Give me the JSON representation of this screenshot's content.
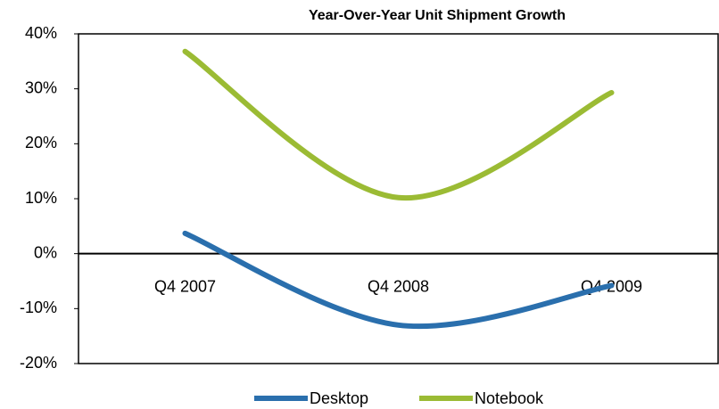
{
  "chart_data": {
    "type": "line",
    "title": "Year-Over-Year Unit Shipment Growth",
    "categories": [
      "Q4 2007",
      "Q4 2008",
      "Q4 2009"
    ],
    "series": [
      {
        "name": "Desktop",
        "color": "#2a6fad",
        "values": [
          3.7,
          -13,
          -5.8
        ]
      },
      {
        "name": "Notebook",
        "color": "#9bbb34",
        "values": [
          36.8,
          10.2,
          29.3
        ]
      }
    ],
    "ylim": [
      -20,
      40
    ],
    "yticks": [
      {
        "value": -20,
        "label": "-20%"
      },
      {
        "value": -10,
        "label": "-10%"
      },
      {
        "value": 0,
        "label": "0%"
      },
      {
        "value": 10,
        "label": "10%"
      },
      {
        "value": 20,
        "label": "20%"
      },
      {
        "value": 30,
        "label": "30%"
      },
      {
        "value": 40,
        "label": "40%"
      }
    ],
    "legend": "bottom",
    "smooth": true
  }
}
